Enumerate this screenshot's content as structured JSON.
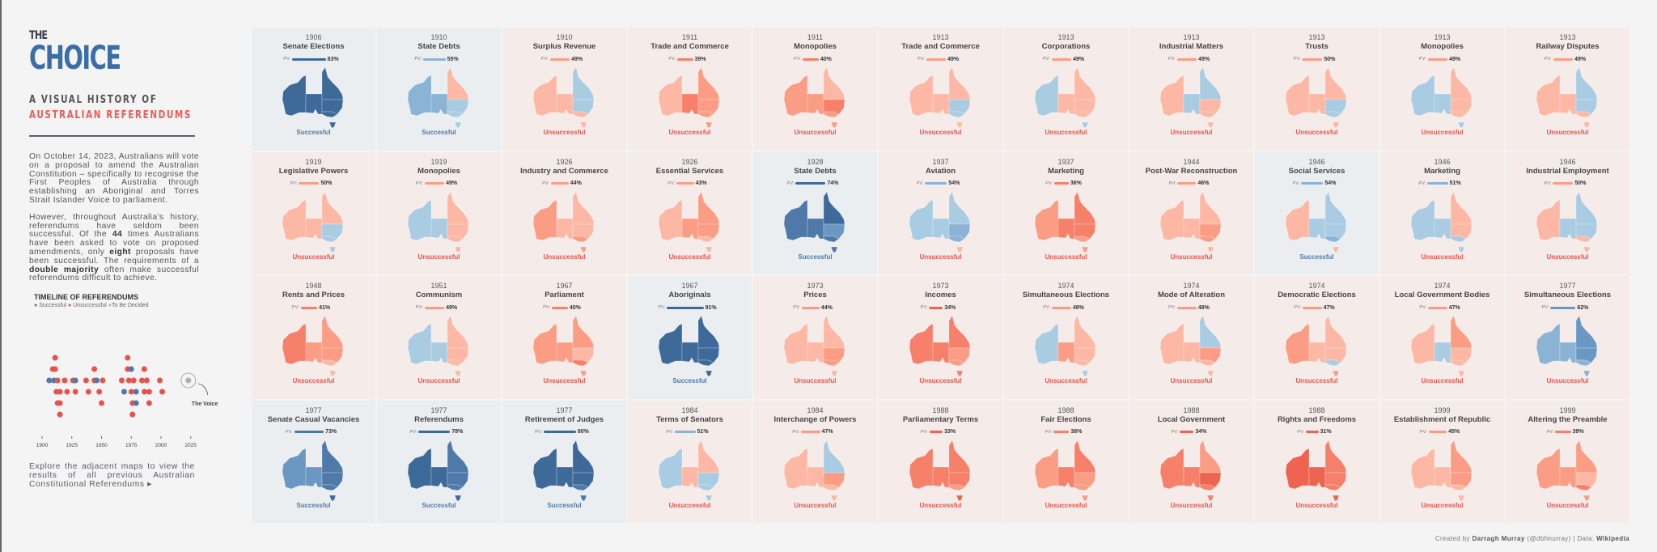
{
  "side": {
    "the": "THE",
    "choice": "CHOICE",
    "sub1": "A VISUAL HISTORY OF",
    "sub2": "AUSTRALIAN REFERENDUMS",
    "p1": "On October 14, 2023, Australians will vote on a proposal to amend the Australian Constitution – specifically to recognise the First Peoples of Australia through establishing an Aboriginal and Torres Strait Islander Voice to parliament.",
    "p2a": "However, throughout Australia's history, referendums have seldom been successful. Of the ",
    "p2b": "44",
    "p2c": " times Australians have been asked to vote on proposed amendments, only ",
    "p2d": "eight",
    "p2e": " proposals have been successful. The requirements of a ",
    "p2f": "double majority",
    "p2g": " often make successful referendums difficult to achieve.",
    "explore": "Explore the adjacent maps to view the results of all previous Australian Constitutional Referendums ▸"
  },
  "timeline": {
    "title": "TIMELINE OF REFERENDUMS",
    "legend": [
      "Successful",
      "Unsuccessful",
      "To Be Decided"
    ],
    "ticks": [
      "1900",
      "1925",
      "1950",
      "1975",
      "2000",
      "2025"
    ],
    "voice_label": "The Voice",
    "voice_year": 2023
  },
  "colors": {
    "success": "#4f79a8",
    "unsuccessful": "#e8524a",
    "tbd": "#b9aca6",
    "bg_success": "#ebeef1",
    "bg_unsuccessful": "#f5ecea"
  },
  "pv_label": "PV:",
  "result_labels": {
    "s": "Successful",
    "u": "Unsuccessful"
  },
  "referendums": [
    {
      "year": "1906",
      "title": "Senate Elections",
      "pv": 83,
      "ok": true
    },
    {
      "year": "1910",
      "title": "State Debts",
      "pv": 55,
      "ok": true
    },
    {
      "year": "1910",
      "title": "Surplus Revenue",
      "pv": 49,
      "ok": false
    },
    {
      "year": "1911",
      "title": "Trade and Commerce",
      "pv": 39,
      "ok": false
    },
    {
      "year": "1911",
      "title": "Monopolies",
      "pv": 40,
      "ok": false
    },
    {
      "year": "1913",
      "title": "Trade and Commerce",
      "pv": 49,
      "ok": false
    },
    {
      "year": "1913",
      "title": "Corporations",
      "pv": 49,
      "ok": false
    },
    {
      "year": "1913",
      "title": "Industrial Matters",
      "pv": 49,
      "ok": false
    },
    {
      "year": "1913",
      "title": "Trusts",
      "pv": 50,
      "ok": false
    },
    {
      "year": "1913",
      "title": "Monopolies",
      "pv": 49,
      "ok": false
    },
    {
      "year": "1913",
      "title": "Railway Disputes",
      "pv": 49,
      "ok": false
    },
    {
      "year": "1919",
      "title": "Legislative Powers",
      "pv": 50,
      "ok": false
    },
    {
      "year": "1919",
      "title": "Monopolies",
      "pv": 49,
      "ok": false
    },
    {
      "year": "1926",
      "title": "Industry and Commerce",
      "pv": 44,
      "ok": false
    },
    {
      "year": "1926",
      "title": "Essential Services",
      "pv": 43,
      "ok": false
    },
    {
      "year": "1928",
      "title": "State Debts",
      "pv": 74,
      "ok": true
    },
    {
      "year": "1937",
      "title": "Aviation",
      "pv": 54,
      "ok": false
    },
    {
      "year": "1937",
      "title": "Marketing",
      "pv": 36,
      "ok": false
    },
    {
      "year": "1944",
      "title": "Post-War Reconstruction",
      "pv": 46,
      "ok": false
    },
    {
      "year": "1946",
      "title": "Social Services",
      "pv": 54,
      "ok": true
    },
    {
      "year": "1946",
      "title": "Marketing",
      "pv": 51,
      "ok": false
    },
    {
      "year": "1946",
      "title": "Industrial Employment",
      "pv": 50,
      "ok": false
    },
    {
      "year": "1948",
      "title": "Rents and Prices",
      "pv": 41,
      "ok": false
    },
    {
      "year": "1951",
      "title": "Communism",
      "pv": 49,
      "ok": false
    },
    {
      "year": "1967",
      "title": "Parliament",
      "pv": 40,
      "ok": false
    },
    {
      "year": "1967",
      "title": "Aboriginals",
      "pv": 91,
      "ok": true
    },
    {
      "year": "1973",
      "title": "Prices",
      "pv": 44,
      "ok": false
    },
    {
      "year": "1973",
      "title": "Incomes",
      "pv": 34,
      "ok": false
    },
    {
      "year": "1974",
      "title": "Simultaneous Elections",
      "pv": 48,
      "ok": false
    },
    {
      "year": "1974",
      "title": "Mode of Alteration",
      "pv": 48,
      "ok": false
    },
    {
      "year": "1974",
      "title": "Democratic Elections",
      "pv": 47,
      "ok": false
    },
    {
      "year": "1974",
      "title": "Local Government Bodies",
      "pv": 47,
      "ok": false
    },
    {
      "year": "1977",
      "title": "Simultaneous Elections",
      "pv": 62,
      "ok": false
    },
    {
      "year": "1977",
      "title": "Senate Casual Vacancies",
      "pv": 73,
      "ok": true
    },
    {
      "year": "1977",
      "title": "Referendums",
      "pv": 78,
      "ok": true
    },
    {
      "year": "1977",
      "title": "Retirement of Judges",
      "pv": 80,
      "ok": true
    },
    {
      "year": "1984",
      "title": "Terms of Senators",
      "pv": 51,
      "ok": false
    },
    {
      "year": "1984",
      "title": "Interchange of Powers",
      "pv": 47,
      "ok": false
    },
    {
      "year": "1988",
      "title": "Parliamentary Terms",
      "pv": 33,
      "ok": false
    },
    {
      "year": "1988",
      "title": "Fair Elections",
      "pv": 38,
      "ok": false
    },
    {
      "year": "1988",
      "title": "Local Government",
      "pv": 34,
      "ok": false
    },
    {
      "year": "1988",
      "title": "Rights and Freedoms",
      "pv": 31,
      "ok": false
    },
    {
      "year": "1999",
      "title": "Establishment of Republic",
      "pv": 45,
      "ok": false
    },
    {
      "year": "1999",
      "title": "Altering the Preamble",
      "pv": 39,
      "ok": false
    }
  ],
  "credit": {
    "a": "Created by ",
    "b": "Darragh Murray",
    "c": " (@dbfmurray) | Data: ",
    "d": "Wikipedia"
  }
}
